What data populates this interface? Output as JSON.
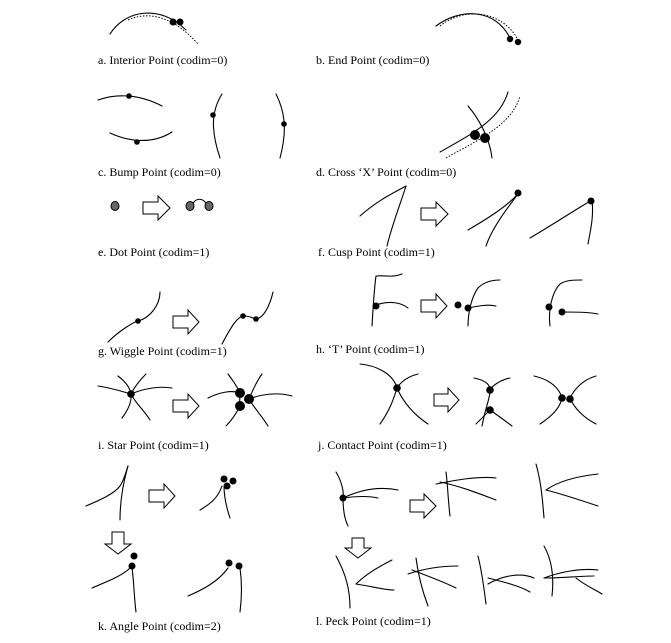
{
  "panels": {
    "a": {
      "label": "a. Interior Point (codim=0)"
    },
    "b": {
      "label": "b.  End Point (codim=0)"
    },
    "c": {
      "label": "c. Bump Point (codim=0)"
    },
    "d": {
      "label": "d.  Cross ‘X’ Point (codim=0)"
    },
    "e": {
      "label": "e. Dot Point (codim=1)"
    },
    "f": {
      "label": "f.  Cusp Point (codim=1)"
    },
    "g": {
      "label": "g. Wiggle Point (codim=1)"
    },
    "h": {
      "label": "h.  ‘T’   Point (codim=1)"
    },
    "i": {
      "label": "i. Star Point (codim=1)"
    },
    "j": {
      "label": "j.  Contact Point (codim=1)"
    },
    "k": {
      "label": "k. Angle Point (codim=2)"
    },
    "l": {
      "label": "l.  Peck Point (codim=1)"
    }
  }
}
